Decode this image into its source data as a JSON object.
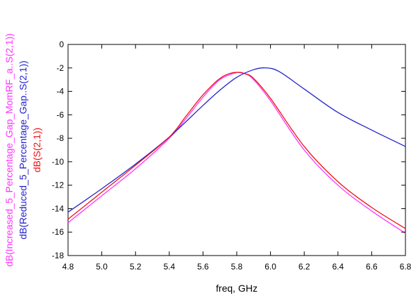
{
  "chart_data": {
    "type": "line",
    "xlabel": "freq, GHz",
    "ylabels": [
      {
        "text": "dB(Increased_5_Percentage_Gap_MomRF_a..S(2,1))",
        "color": "#ff33ff"
      },
      {
        "text": "dB(Reduced_5_Percentage_Gap..S(2,1))",
        "color": "#2222cc"
      },
      {
        "text": "dB(S(2,1))",
        "color": "#ee1111"
      }
    ],
    "xlim": [
      4.8,
      6.8
    ],
    "ylim": [
      -18,
      0
    ],
    "x_ticks": [
      "4.8",
      "5.0",
      "5.2",
      "5.4",
      "5.6",
      "5.8",
      "6.0",
      "6.2",
      "6.4",
      "6.6",
      "6.8"
    ],
    "y_ticks": [
      "0",
      "-2",
      "-4",
      "-6",
      "-8",
      "-10",
      "-12",
      "-14",
      "-16",
      "-18"
    ],
    "x_tick_values": [
      4.8,
      5.0,
      5.2,
      5.4,
      5.6,
      5.8,
      6.0,
      6.2,
      6.4,
      6.6,
      6.8
    ],
    "y_tick_values": [
      0,
      -2,
      -4,
      -6,
      -8,
      -10,
      -12,
      -14,
      -16,
      -18
    ],
    "grid": false,
    "series": [
      {
        "color": "#ff33ff",
        "x": [
          4.8,
          5.0,
          5.2,
          5.4,
          5.5,
          5.6,
          5.7,
          5.8,
          5.85,
          5.9,
          6.0,
          6.2,
          6.4,
          6.6,
          6.8
        ],
        "y": [
          -15.2,
          -12.9,
          -10.6,
          -8.0,
          -6.3,
          -4.5,
          -3.0,
          -2.4,
          -2.5,
          -3.0,
          -4.8,
          -9.0,
          -12.0,
          -14.2,
          -16.1
        ]
      },
      {
        "color": "#2222cc",
        "x": [
          4.8,
          5.0,
          5.2,
          5.4,
          5.6,
          5.7,
          5.8,
          5.9,
          5.97,
          6.05,
          6.2,
          6.4,
          6.6,
          6.8
        ],
        "y": [
          -14.3,
          -12.3,
          -10.2,
          -7.9,
          -5.2,
          -3.9,
          -2.8,
          -2.15,
          -2.0,
          -2.3,
          -3.8,
          -5.8,
          -7.3,
          -8.7
        ]
      },
      {
        "color": "#ee1111",
        "x": [
          4.8,
          5.0,
          5.2,
          5.4,
          5.5,
          5.6,
          5.7,
          5.78,
          5.85,
          5.9,
          6.0,
          6.2,
          6.4,
          6.6,
          6.8
        ],
        "y": [
          -14.9,
          -12.6,
          -10.3,
          -7.9,
          -6.1,
          -4.3,
          -2.9,
          -2.4,
          -2.5,
          -2.9,
          -4.6,
          -8.7,
          -11.7,
          -13.9,
          -15.7
        ]
      }
    ]
  }
}
